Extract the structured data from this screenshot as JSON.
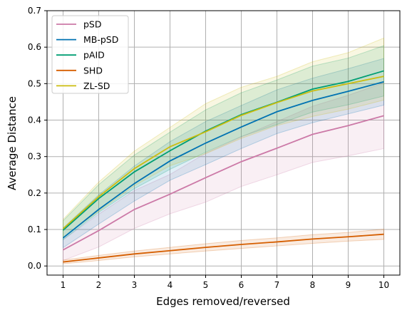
{
  "chart_data": {
    "type": "line",
    "xlabel": "Edges removed/reversed",
    "ylabel": "Average Distance",
    "x": [
      1,
      2,
      3,
      4,
      5,
      6,
      7,
      8,
      9,
      10
    ],
    "xticks": [
      "1",
      "2",
      "3",
      "4",
      "5",
      "6",
      "7",
      "8",
      "9",
      "10"
    ],
    "yticks": [
      "0.0",
      "0.1",
      "0.2",
      "0.3",
      "0.4",
      "0.5",
      "0.6",
      "0.7"
    ],
    "ylim": [
      -0.025,
      0.7
    ],
    "xlim": [
      0.55,
      10.45
    ],
    "grid": true,
    "legend_position": "upper-left",
    "series": [
      {
        "name": "pSD",
        "color": "#cc79a7",
        "values": [
          0.044,
          0.097,
          0.155,
          0.197,
          0.242,
          0.286,
          0.323,
          0.361,
          0.385,
          0.412
        ],
        "lower": [
          0.015,
          0.052,
          0.103,
          0.143,
          0.175,
          0.218,
          0.25,
          0.284,
          0.302,
          0.322
        ],
        "upper": [
          0.072,
          0.142,
          0.207,
          0.251,
          0.309,
          0.354,
          0.396,
          0.438,
          0.468,
          0.502
        ]
      },
      {
        "name": "MB-pSD",
        "color": "#0072b2",
        "values": [
          0.077,
          0.155,
          0.226,
          0.288,
          0.337,
          0.381,
          0.423,
          0.454,
          0.479,
          0.505
        ],
        "lower": [
          0.05,
          0.115,
          0.178,
          0.235,
          0.278,
          0.322,
          0.363,
          0.393,
          0.417,
          0.441
        ],
        "upper": [
          0.104,
          0.195,
          0.274,
          0.341,
          0.396,
          0.44,
          0.483,
          0.515,
          0.541,
          0.569
        ]
      },
      {
        "name": "pAID",
        "color": "#009e73",
        "values": [
          0.098,
          0.185,
          0.258,
          0.316,
          0.37,
          0.415,
          0.449,
          0.485,
          0.506,
          0.535
        ],
        "lower": [
          0.072,
          0.147,
          0.212,
          0.265,
          0.312,
          0.355,
          0.388,
          0.422,
          0.442,
          0.466
        ],
        "upper": [
          0.124,
          0.223,
          0.304,
          0.367,
          0.428,
          0.475,
          0.51,
          0.548,
          0.57,
          0.604
        ]
      },
      {
        "name": "SHD",
        "color": "#d55e00",
        "values": [
          0.011,
          0.022,
          0.033,
          0.042,
          0.051,
          0.059,
          0.066,
          0.074,
          0.08,
          0.087
        ],
        "lower": [
          0.006,
          0.015,
          0.025,
          0.033,
          0.041,
          0.048,
          0.055,
          0.062,
          0.068,
          0.073
        ],
        "upper": [
          0.016,
          0.029,
          0.041,
          0.051,
          0.061,
          0.07,
          0.077,
          0.086,
          0.092,
          0.101
        ]
      },
      {
        "name": "ZL-SD",
        "color": "#cbbd0f",
        "values": [
          0.102,
          0.19,
          0.267,
          0.327,
          0.368,
          0.413,
          0.448,
          0.48,
          0.5,
          0.52
        ],
        "lower": [
          0.078,
          0.15,
          0.22,
          0.275,
          0.308,
          0.35,
          0.385,
          0.41,
          0.43,
          0.455
        ],
        "upper": [
          0.128,
          0.23,
          0.315,
          0.38,
          0.445,
          0.49,
          0.52,
          0.56,
          0.585,
          0.625
        ]
      }
    ]
  }
}
